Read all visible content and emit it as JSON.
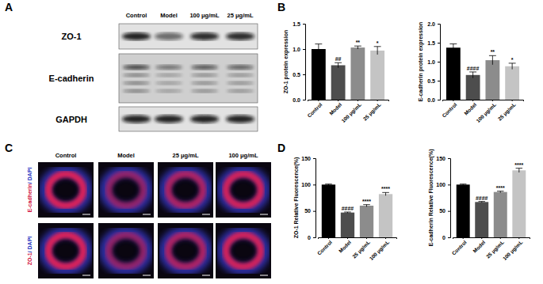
{
  "panel_labels": [
    "A",
    "B",
    "C",
    "D"
  ],
  "blot": {
    "columns": [
      "Control",
      "Model",
      "100 μg/mL",
      "25 μg/mL"
    ],
    "rows": [
      "ZO-1",
      "E-cadherin",
      "GAPDH"
    ]
  },
  "images": {
    "columns": [
      "Control",
      "Model",
      "25 μg/mL",
      "100 μg/mL"
    ],
    "rows": [
      [
        "E-cadherin",
        "/ DAPI"
      ],
      [
        "ZO-1",
        "/ DAPI"
      ]
    ]
  },
  "chart_data": [
    {
      "type": "bar",
      "y_label": "ZO-1 protein expression",
      "categories": [
        "Control",
        "Model",
        "100 μg/mL",
        "25 μg/mL"
      ],
      "values": [
        1.0,
        0.68,
        1.03,
        0.97
      ],
      "errors": [
        0.1,
        0.05,
        0.03,
        0.08
      ],
      "significance": [
        null,
        "##",
        "**",
        "*"
      ],
      "colors": [
        "#000000",
        "#4d4d4d",
        "#8c8c8c",
        "#c4c4c4"
      ],
      "ylim": [
        0,
        1.5
      ],
      "yticks": [
        {
          "value": 0,
          "label": "0.0"
        },
        0.5,
        {
          "value": 1,
          "label": "1.0"
        },
        1.5
      ]
    },
    {
      "type": "bar",
      "y_label": "E-cadherin protein expression",
      "categories": [
        "Control",
        "Model",
        "100 μg/mL",
        "25 μg/mL"
      ],
      "values": [
        1.37,
        0.65,
        1.04,
        0.88
      ],
      "errors": [
        0.1,
        0.08,
        0.12,
        0.08
      ],
      "significance": [
        null,
        "####",
        "**",
        "*"
      ],
      "colors": [
        "#000000",
        "#4d4d4d",
        "#8c8c8c",
        "#c4c4c4"
      ],
      "ylim": [
        0,
        2
      ],
      "yticks": [
        {
          "value": 0,
          "label": "0.0"
        },
        0.5,
        {
          "value": 1,
          "label": "1.0"
        },
        1.5,
        {
          "value": 2,
          "label": "2.0"
        }
      ]
    },
    {
      "type": "bar",
      "y_label": "ZO-1 Relative Fluorescence(%)",
      "categories": [
        "Control",
        "Model",
        "25 μg/mL",
        "100 μg/mL"
      ],
      "values": [
        100,
        47,
        60,
        82
      ],
      "errors": [
        1,
        1,
        2,
        3
      ],
      "significance": [
        null,
        "####",
        "****",
        "****"
      ],
      "colors": [
        "#000000",
        "#4d4d4d",
        "#8c8c8c",
        "#c4c4c4"
      ],
      "ylim": [
        0,
        150
      ],
      "yticks": [
        0,
        50,
        100,
        150
      ]
    },
    {
      "type": "bar",
      "y_label": "E-cadherin Relative Fluorescence(%)",
      "categories": [
        "Control",
        "Model",
        "25 μg/mL",
        "100 μg/mL"
      ],
      "values": [
        100,
        67,
        86,
        127
      ],
      "errors": [
        1,
        1,
        1.5,
        4
      ],
      "significance": [
        null,
        "####",
        "****",
        "****"
      ],
      "colors": [
        "#000000",
        "#4d4d4d",
        "#8c8c8c",
        "#c4c4c4"
      ],
      "ylim": [
        0,
        150
      ],
      "yticks": [
        0,
        50,
        100,
        150
      ]
    }
  ]
}
